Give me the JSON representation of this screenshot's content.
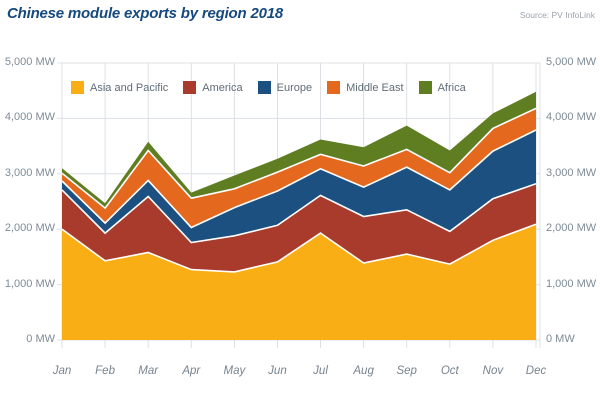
{
  "header": {
    "title": "Chinese module exports by region 2018",
    "source": "Source: PV InfoLink"
  },
  "chart_data": {
    "type": "area",
    "stacked": true,
    "title": "Chinese module exports by region 2018",
    "unit": "MW",
    "x": [
      "Jan",
      "Feb",
      "Mar",
      "Apr",
      "May",
      "Jun",
      "Jul",
      "Aug",
      "Sep",
      "Oct",
      "Nov",
      "Dec"
    ],
    "series": [
      {
        "name": "Asia and Pacific",
        "color": "#F8AE14",
        "values": [
          2000,
          1430,
          1580,
          1270,
          1230,
          1410,
          1930,
          1390,
          1550,
          1370,
          1800,
          2090
        ]
      },
      {
        "name": "America",
        "color": "#A83B2C",
        "values": [
          710,
          500,
          1010,
          490,
          650,
          660,
          680,
          840,
          800,
          590,
          750,
          730
        ]
      },
      {
        "name": "Europe",
        "color": "#1C5080",
        "values": [
          160,
          180,
          290,
          270,
          510,
          620,
          480,
          530,
          770,
          750,
          860,
          970
        ]
      },
      {
        "name": "Middle East",
        "color": "#E4681E",
        "values": [
          140,
          270,
          540,
          530,
          340,
          340,
          260,
          380,
          320,
          310,
          410,
          390
        ]
      },
      {
        "name": "Africa",
        "color": "#5F7E22",
        "values": [
          90,
          90,
          160,
          100,
          240,
          240,
          270,
          340,
          430,
          400,
          270,
          300
        ]
      }
    ],
    "y_axis": {
      "min": 0,
      "max": 5000,
      "step": 1000,
      "tick_labels": [
        "0 MW",
        "1,000 MW",
        "2,000 MW",
        "3,000 MW",
        "4,000 MW",
        "5,000 MW"
      ],
      "sides": [
        "left",
        "right"
      ]
    },
    "grid": true,
    "legend_position": "top",
    "separator_color": "#FFFFFF",
    "grid_color": "#DCE0E4"
  }
}
